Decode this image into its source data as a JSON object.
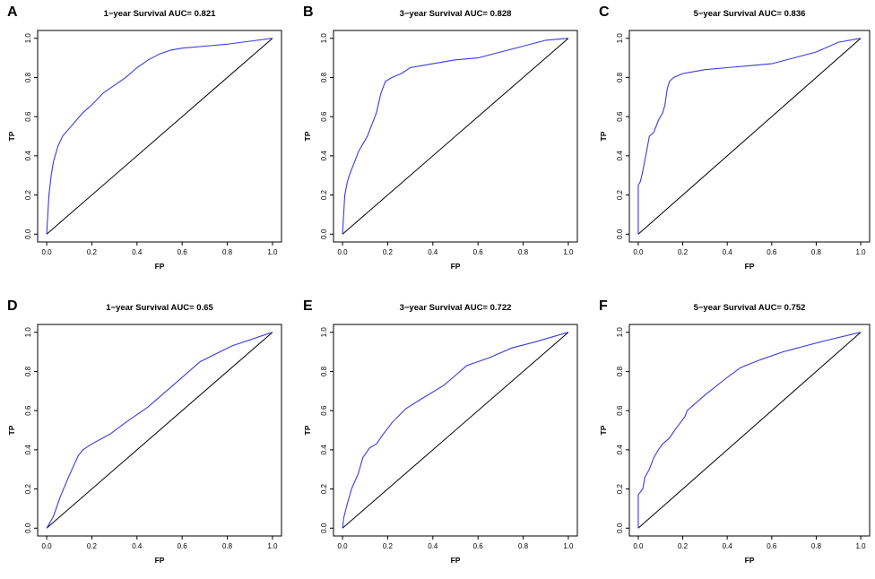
{
  "colors": {
    "roc_line": "#3b3bdc",
    "diagonal": "#000000",
    "frame": "#000000"
  },
  "chart_data": [
    {
      "panel": "A",
      "type": "line",
      "title": "1−year Survival AUC= 0.821",
      "xlabel": "FP",
      "ylabel": "TP",
      "xlim": [
        0,
        1
      ],
      "ylim": [
        0,
        1
      ],
      "xticks": [
        "0.0",
        "0.2",
        "0.4",
        "0.6",
        "0.8",
        "1.0"
      ],
      "yticks": [
        "0.0",
        "0.2",
        "0.4",
        "0.6",
        "0.8",
        "1.0"
      ],
      "reference_line": [
        [
          0,
          0
        ],
        [
          1,
          1
        ]
      ],
      "series": [
        {
          "name": "ROC",
          "x": [
            0,
            0.005,
            0.01,
            0.02,
            0.03,
            0.05,
            0.07,
            0.1,
            0.13,
            0.16,
            0.2,
            0.25,
            0.3,
            0.35,
            0.4,
            0.45,
            0.5,
            0.55,
            0.6,
            0.7,
            0.8,
            0.9,
            1.0
          ],
          "y": [
            0,
            0.1,
            0.2,
            0.3,
            0.37,
            0.45,
            0.5,
            0.54,
            0.58,
            0.62,
            0.66,
            0.72,
            0.76,
            0.8,
            0.85,
            0.89,
            0.92,
            0.94,
            0.95,
            0.96,
            0.97,
            0.985,
            1.0
          ]
        }
      ]
    },
    {
      "panel": "B",
      "type": "line",
      "title": "3−year Survival AUC= 0.828",
      "xlabel": "FP",
      "ylabel": "TP",
      "xlim": [
        0,
        1
      ],
      "ylim": [
        0,
        1
      ],
      "xticks": [
        "0.0",
        "0.2",
        "0.4",
        "0.6",
        "0.8",
        "1.0"
      ],
      "yticks": [
        "0.0",
        "0.2",
        "0.4",
        "0.6",
        "0.8",
        "1.0"
      ],
      "reference_line": [
        [
          0,
          0
        ],
        [
          1,
          1
        ]
      ],
      "series": [
        {
          "name": "ROC",
          "x": [
            0,
            0.005,
            0.01,
            0.02,
            0.03,
            0.05,
            0.07,
            0.09,
            0.11,
            0.13,
            0.15,
            0.17,
            0.19,
            0.22,
            0.26,
            0.3,
            0.35,
            0.4,
            0.5,
            0.6,
            0.7,
            0.8,
            0.9,
            1.0
          ],
          "y": [
            0,
            0.1,
            0.2,
            0.26,
            0.3,
            0.36,
            0.42,
            0.46,
            0.5,
            0.56,
            0.62,
            0.72,
            0.78,
            0.8,
            0.82,
            0.85,
            0.86,
            0.87,
            0.89,
            0.9,
            0.93,
            0.96,
            0.99,
            1.0
          ]
        }
      ]
    },
    {
      "panel": "C",
      "type": "line",
      "title": "5−year Survival AUC= 0.836",
      "xlabel": "FP",
      "ylabel": "TP",
      "xlim": [
        0,
        1
      ],
      "ylim": [
        0,
        1
      ],
      "xticks": [
        "0.0",
        "0.2",
        "0.4",
        "0.6",
        "0.8",
        "1.0"
      ],
      "yticks": [
        "0.0",
        "0.2",
        "0.4",
        "0.6",
        "0.8",
        "1.0"
      ],
      "reference_line": [
        [
          0,
          0
        ],
        [
          1,
          1
        ]
      ],
      "series": [
        {
          "name": "ROC",
          "x": [
            0,
            0.0,
            0.01,
            0.02,
            0.03,
            0.04,
            0.05,
            0.07,
            0.09,
            0.1,
            0.11,
            0.12,
            0.13,
            0.14,
            0.15,
            0.16,
            0.2,
            0.3,
            0.4,
            0.5,
            0.6,
            0.7,
            0.8,
            0.9,
            1.0
          ],
          "y": [
            0,
            0.25,
            0.27,
            0.32,
            0.38,
            0.44,
            0.5,
            0.52,
            0.58,
            0.6,
            0.62,
            0.66,
            0.74,
            0.78,
            0.79,
            0.8,
            0.82,
            0.84,
            0.85,
            0.86,
            0.87,
            0.9,
            0.93,
            0.98,
            1.0
          ]
        }
      ]
    },
    {
      "panel": "D",
      "type": "line",
      "title": "1−year Survival AUC= 0.65",
      "xlabel": "FP",
      "ylabel": "TP",
      "xlim": [
        0,
        1
      ],
      "ylim": [
        0,
        1
      ],
      "xticks": [
        "0.0",
        "0.2",
        "0.4",
        "0.6",
        "0.8",
        "1.0"
      ],
      "yticks": [
        "0.0",
        "0.2",
        "0.4",
        "0.6",
        "0.8",
        "1.0"
      ],
      "reference_line": [
        [
          0,
          0
        ],
        [
          1,
          1
        ]
      ],
      "series": [
        {
          "name": "ROC",
          "x": [
            0,
            0.03,
            0.06,
            0.1,
            0.14,
            0.16,
            0.2,
            0.28,
            0.35,
            0.45,
            0.55,
            0.68,
            0.82,
            1.0
          ],
          "y": [
            0,
            0.06,
            0.16,
            0.27,
            0.37,
            0.4,
            0.43,
            0.48,
            0.54,
            0.62,
            0.72,
            0.85,
            0.93,
            1.0
          ]
        }
      ]
    },
    {
      "panel": "E",
      "type": "line",
      "title": "3−year Survival AUC= 0.722",
      "xlabel": "FP",
      "ylabel": "TP",
      "xlim": [
        0,
        1
      ],
      "ylim": [
        0,
        1
      ],
      "xticks": [
        "0.0",
        "0.2",
        "0.4",
        "0.6",
        "0.8",
        "1.0"
      ],
      "yticks": [
        "0.0",
        "0.2",
        "0.4",
        "0.6",
        "0.8",
        "1.0"
      ],
      "reference_line": [
        [
          0,
          0
        ],
        [
          1,
          1
        ]
      ],
      "series": [
        {
          "name": "ROC",
          "x": [
            0,
            0.005,
            0.02,
            0.04,
            0.07,
            0.09,
            0.12,
            0.15,
            0.18,
            0.22,
            0.28,
            0.35,
            0.45,
            0.55,
            0.65,
            0.75,
            0.85,
            1.0
          ],
          "y": [
            0,
            0.05,
            0.12,
            0.2,
            0.28,
            0.36,
            0.41,
            0.43,
            0.48,
            0.54,
            0.61,
            0.66,
            0.73,
            0.83,
            0.87,
            0.92,
            0.95,
            1.0
          ]
        }
      ]
    },
    {
      "panel": "F",
      "type": "line",
      "title": "5−year Survival AUC= 0.752",
      "xlabel": "FP",
      "ylabel": "TP",
      "xlim": [
        0,
        1
      ],
      "ylim": [
        0,
        1
      ],
      "xticks": [
        "0.0",
        "0.2",
        "0.4",
        "0.6",
        "0.8",
        "1.0"
      ],
      "yticks": [
        "0.0",
        "0.2",
        "0.4",
        "0.6",
        "0.8",
        "1.0"
      ],
      "reference_line": [
        [
          0,
          0
        ],
        [
          1,
          1
        ]
      ],
      "series": [
        {
          "name": "ROC",
          "x": [
            0,
            0.0,
            0.02,
            0.03,
            0.05,
            0.07,
            0.09,
            0.11,
            0.14,
            0.17,
            0.19,
            0.21,
            0.22,
            0.3,
            0.4,
            0.46,
            0.55,
            0.65,
            0.75,
            0.85,
            1.0
          ],
          "y": [
            0,
            0.17,
            0.2,
            0.26,
            0.3,
            0.36,
            0.4,
            0.43,
            0.46,
            0.51,
            0.54,
            0.57,
            0.6,
            0.68,
            0.77,
            0.82,
            0.86,
            0.9,
            0.93,
            0.96,
            1.0
          ]
        }
      ]
    }
  ]
}
